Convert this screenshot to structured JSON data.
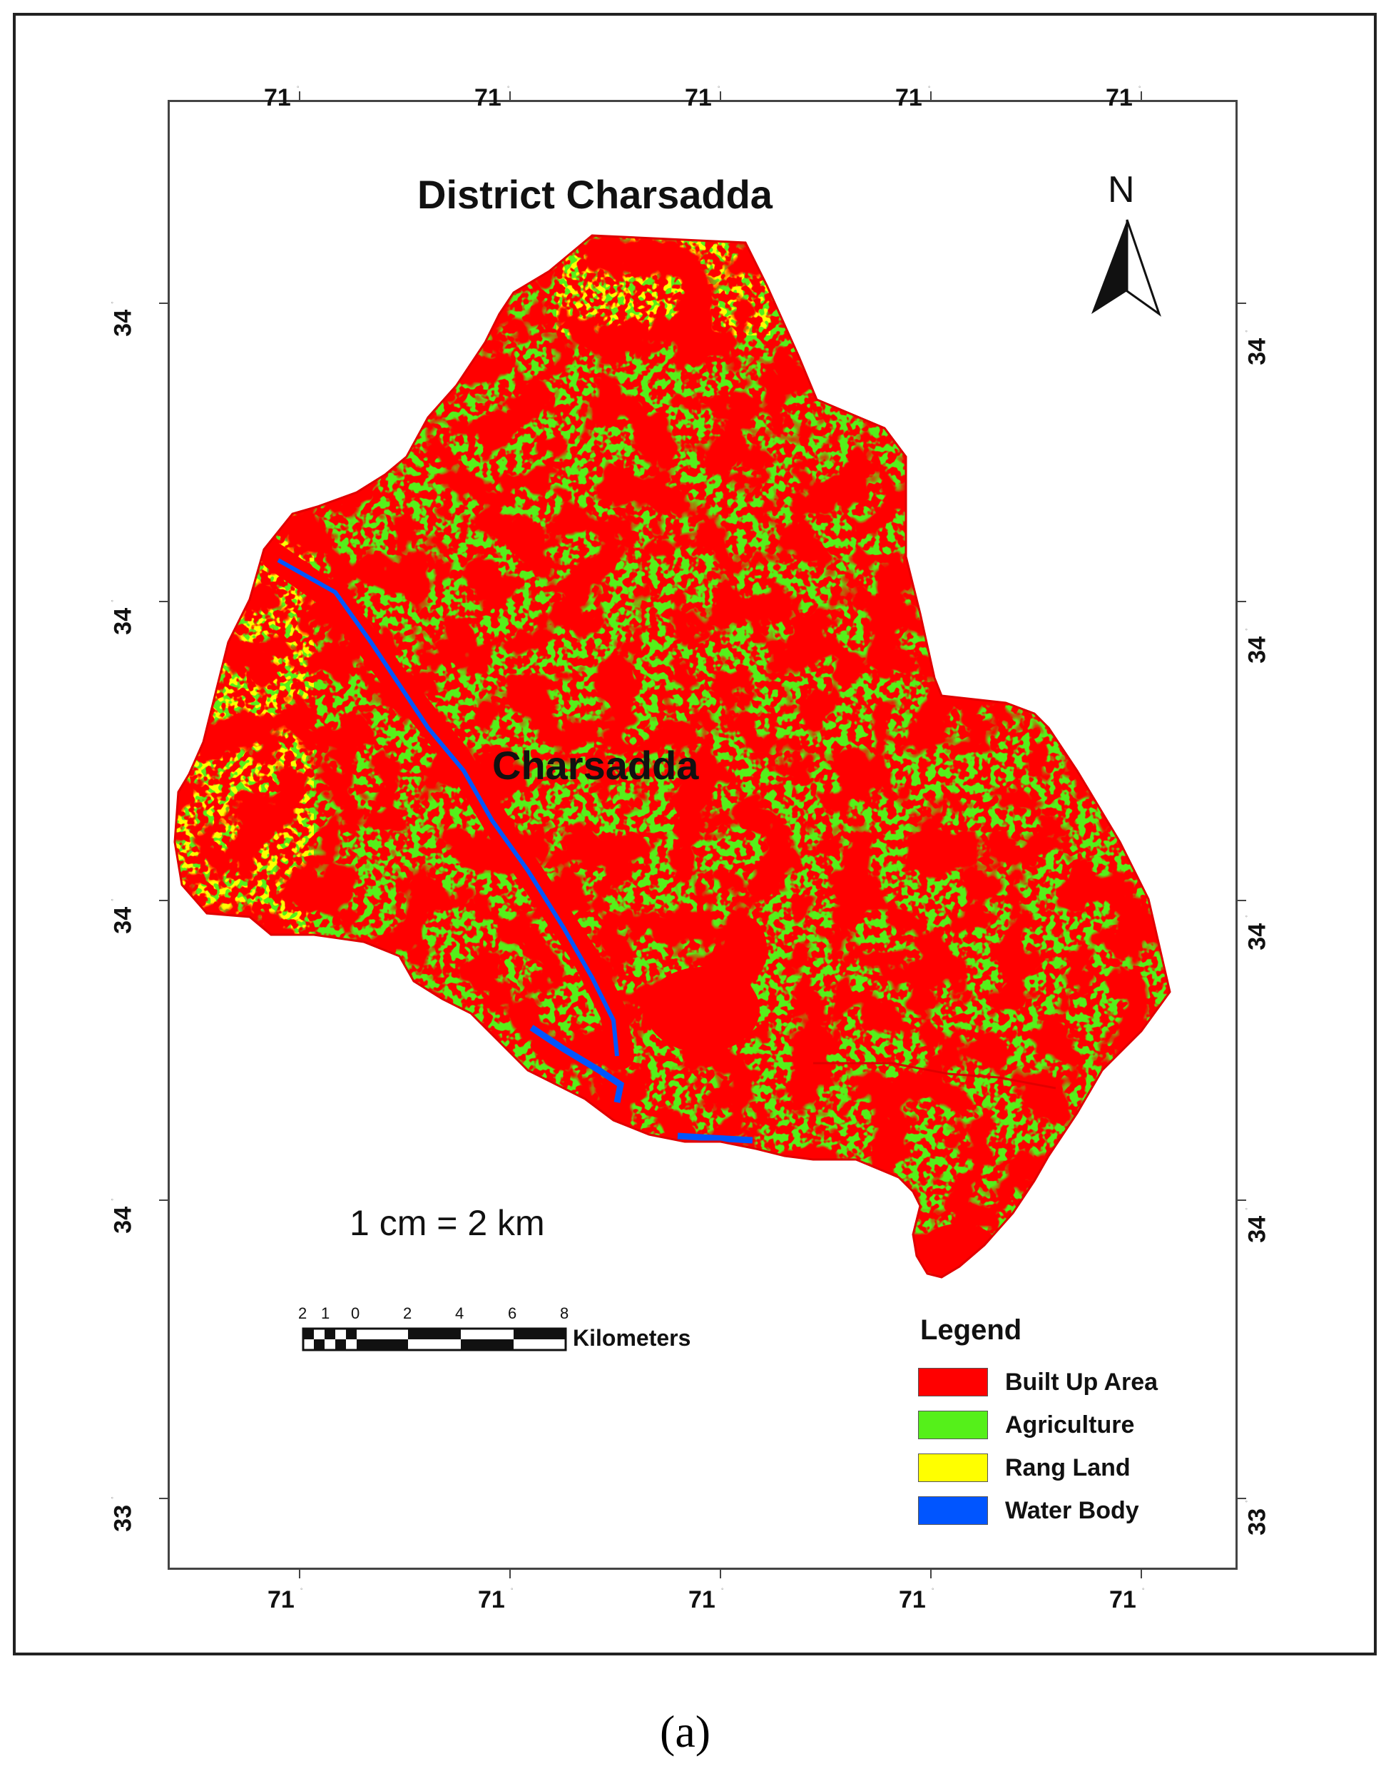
{
  "map": {
    "title": "District Charsadda",
    "place_label": "Charsadda",
    "scale_text": "1 cm = 2 km",
    "north_label": "N",
    "top_axis_labels": [
      "71",
      "71",
      "71",
      "71",
      "71"
    ],
    "bottom_axis_labels": [
      "71",
      "71",
      "71",
      "71",
      "71"
    ],
    "left_axis_labels": [
      "34",
      "34",
      "34",
      "34",
      "33"
    ],
    "right_axis_labels": [
      "34",
      "34",
      "34",
      "34",
      "33"
    ],
    "scale_bar": {
      "ticks": [
        "2",
        "1",
        "0",
        "2",
        "4",
        "6",
        "8"
      ],
      "unit": "Kilometers"
    },
    "legend": {
      "title": "Legend",
      "items": [
        {
          "label": "Built Up Area",
          "color": "#ff0000"
        },
        {
          "label": "Agriculture",
          "color": "#55f01a"
        },
        {
          "label": "Rang Land",
          "color": "#ffff00"
        },
        {
          "label": "Water Body",
          "color": "#0055ff"
        }
      ]
    },
    "colors": {
      "built_up": "#ff0000",
      "agriculture": "#55f01a",
      "rangeland": "#ffff00",
      "water": "#0055ff",
      "boundary": "#e00000"
    }
  },
  "caption": "(a)"
}
